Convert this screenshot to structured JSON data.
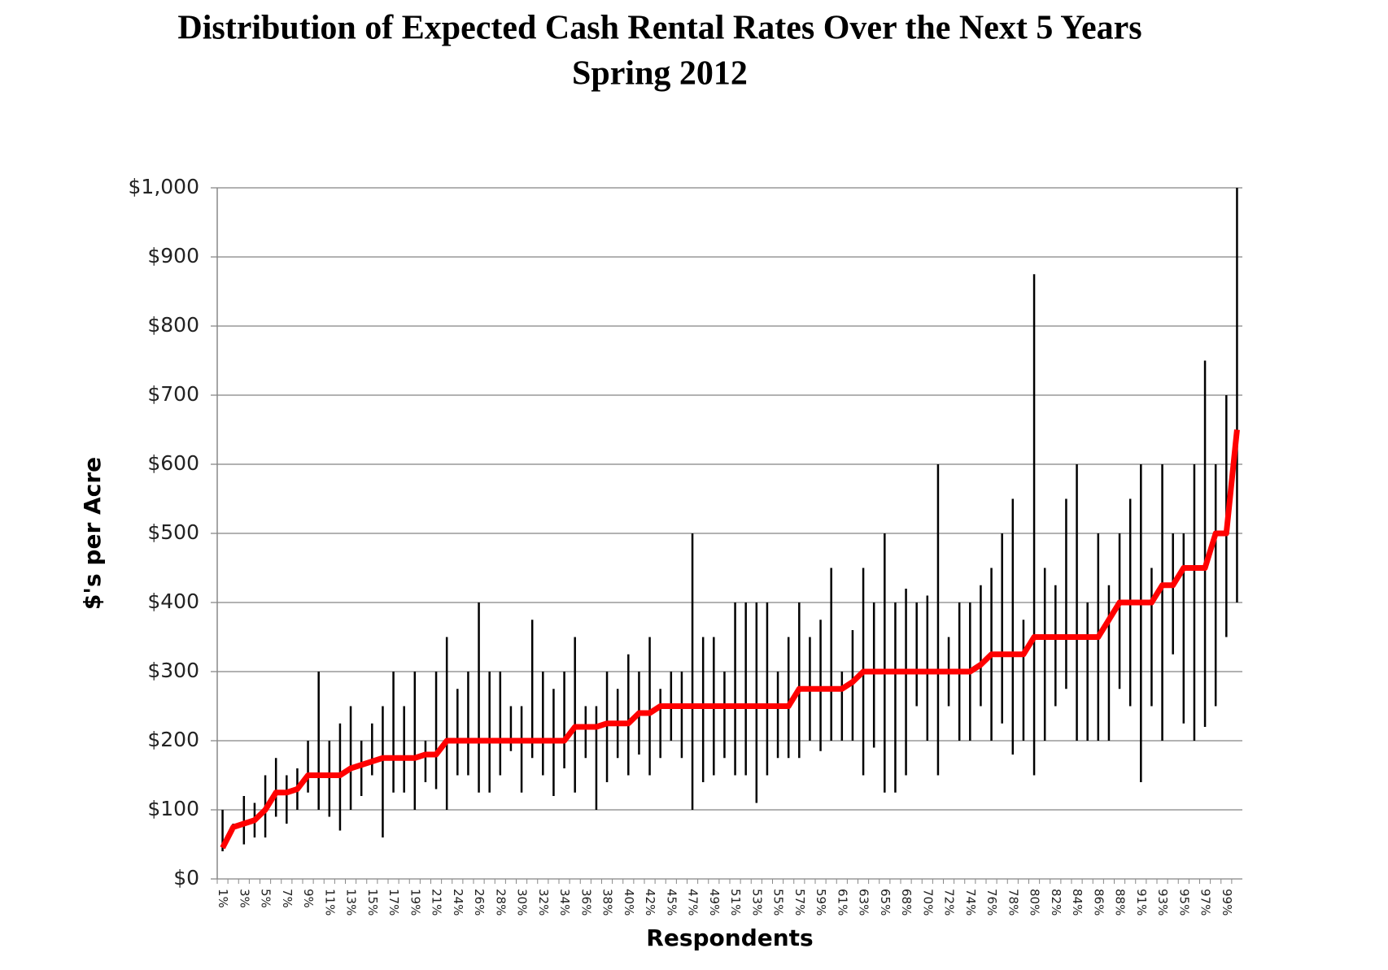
{
  "chart_data": {
    "type": "range_line",
    "title": "Distribution of Expected Cash Rental Rates Over the Next 5 Years",
    "subtitle": "Spring 2012",
    "x_label": "Respondents",
    "y_label": "$'s per Acre",
    "categories": [
      "1%",
      null,
      "3%",
      null,
      "5%",
      null,
      "7%",
      null,
      "9%",
      null,
      "11%",
      null,
      "13%",
      null,
      "15%",
      null,
      "17%",
      null,
      "19%",
      null,
      "21%",
      null,
      "24%",
      null,
      "26%",
      null,
      "28%",
      null,
      "30%",
      null,
      "32%",
      null,
      "34%",
      null,
      "36%",
      null,
      "38%",
      null,
      "40%",
      null,
      "42%",
      null,
      "45%",
      null,
      "47%",
      null,
      "49%",
      null,
      "51%",
      null,
      "53%",
      null,
      "55%",
      null,
      "57%",
      null,
      "59%",
      null,
      "61%",
      null,
      "63%",
      null,
      "65%",
      null,
      "68%",
      null,
      "70%",
      null,
      "72%",
      null,
      "74%",
      null,
      "76%",
      null,
      "78%",
      null,
      "80%",
      null,
      "82%",
      null,
      "84%",
      null,
      "86%",
      null,
      "88%",
      null,
      "91%",
      null,
      "93%",
      null,
      "95%",
      null,
      "97%",
      null,
      "99%",
      null
    ],
    "values": [
      45,
      75,
      80,
      85,
      100,
      125,
      125,
      130,
      150,
      150,
      150,
      150,
      160,
      165,
      170,
      175,
      175,
      175,
      175,
      180,
      180,
      200,
      200,
      200,
      200,
      200,
      200,
      200,
      200,
      200,
      200,
      200,
      200,
      220,
      220,
      220,
      225,
      225,
      225,
      240,
      240,
      250,
      250,
      250,
      250,
      250,
      250,
      250,
      250,
      250,
      250,
      250,
      250,
      250,
      275,
      275,
      275,
      275,
      275,
      285,
      300,
      300,
      300,
      300,
      300,
      300,
      300,
      300,
      300,
      300,
      300,
      310,
      325,
      325,
      325,
      325,
      350,
      350,
      350,
      350,
      350,
      350,
      350,
      375,
      400,
      400,
      400,
      400,
      425,
      425,
      450,
      450,
      450,
      500,
      500,
      650
    ],
    "low": [
      40,
      70,
      50,
      60,
      60,
      90,
      80,
      100,
      125,
      100,
      90,
      70,
      100,
      120,
      150,
      60,
      125,
      125,
      100,
      140,
      130,
      100,
      150,
      150,
      125,
      125,
      150,
      185,
      125,
      175,
      150,
      120,
      160,
      125,
      175,
      100,
      140,
      175,
      150,
      180,
      150,
      175,
      200,
      175,
      100,
      140,
      150,
      175,
      150,
      150,
      110,
      150,
      175,
      175,
      175,
      200,
      185,
      200,
      200,
      200,
      150,
      190,
      125,
      125,
      150,
      250,
      200,
      150,
      250,
      200,
      200,
      250,
      200,
      225,
      180,
      200,
      150,
      200,
      250,
      275,
      200,
      200,
      200,
      200,
      275,
      250,
      140,
      250,
      200,
      325,
      225,
      200,
      220,
      250,
      350,
      400
    ],
    "high": [
      100,
      80,
      120,
      110,
      150,
      175,
      150,
      160,
      200,
      300,
      200,
      225,
      250,
      200,
      225,
      250,
      300,
      250,
      300,
      200,
      300,
      350,
      275,
      300,
      400,
      300,
      300,
      250,
      250,
      375,
      300,
      275,
      300,
      350,
      250,
      250,
      300,
      275,
      325,
      300,
      350,
      275,
      300,
      300,
      500,
      350,
      350,
      300,
      400,
      400,
      400,
      400,
      300,
      350,
      400,
      350,
      375,
      450,
      300,
      360,
      450,
      400,
      500,
      400,
      420,
      400,
      410,
      600,
      350,
      400,
      400,
      425,
      450,
      500,
      550,
      375,
      875,
      450,
      425,
      550,
      600,
      400,
      500,
      425,
      500,
      550,
      600,
      450,
      600,
      500,
      500,
      600,
      750,
      600,
      700,
      1000
    ],
    "color": "#ff0000",
    "range_color": "#000000",
    "ylim": [
      0,
      1000
    ],
    "yticks": [
      {
        "value": 0,
        "label": "$0"
      },
      {
        "value": 100,
        "label": "$100"
      },
      {
        "value": 200,
        "label": "$200"
      },
      {
        "value": 300,
        "label": "$300"
      },
      {
        "value": 400,
        "label": "$400"
      },
      {
        "value": 500,
        "label": "$500"
      },
      {
        "value": 600,
        "label": "$600"
      },
      {
        "value": 700,
        "label": "$700"
      },
      {
        "value": 800,
        "label": "$800"
      },
      {
        "value": 900,
        "label": "$900"
      },
      {
        "value": 1000,
        "label": "$1,000"
      }
    ],
    "grid": true
  }
}
